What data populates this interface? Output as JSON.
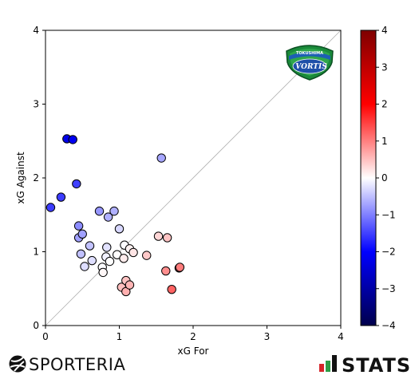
{
  "chart_data": {
    "type": "scatter",
    "title": "",
    "xlabel": "xG For",
    "ylabel": "xG Against",
    "xlim": [
      0,
      4
    ],
    "ylim": [
      0,
      4
    ],
    "xticks": [
      "0",
      "1",
      "2",
      "3",
      "4"
    ],
    "yticks": [
      "0",
      "1",
      "2",
      "3",
      "4"
    ],
    "diagonal_reference_line": true,
    "grid": false,
    "colorbar": {
      "colormap": "seismic",
      "range": [
        -4,
        4
      ],
      "ticks": [
        "−4",
        "−3",
        "−2",
        "−1",
        "0",
        "1",
        "2",
        "3",
        "4"
      ],
      "color_value": "xG For − xG Against"
    },
    "points": [
      {
        "x": 0.07,
        "y": 1.6
      },
      {
        "x": 0.21,
        "y": 1.74
      },
      {
        "x": 0.29,
        "y": 2.53
      },
      {
        "x": 0.37,
        "y": 2.52
      },
      {
        "x": 0.42,
        "y": 1.92
      },
      {
        "x": 0.45,
        "y": 1.35
      },
      {
        "x": 0.45,
        "y": 1.19
      },
      {
        "x": 0.5,
        "y": 1.24
      },
      {
        "x": 0.48,
        "y": 0.97
      },
      {
        "x": 0.53,
        "y": 0.8
      },
      {
        "x": 0.6,
        "y": 1.08
      },
      {
        "x": 0.63,
        "y": 0.88
      },
      {
        "x": 0.73,
        "y": 1.55
      },
      {
        "x": 0.77,
        "y": 0.79
      },
      {
        "x": 0.78,
        "y": 0.72
      },
      {
        "x": 0.82,
        "y": 0.93
      },
      {
        "x": 0.83,
        "y": 1.06
      },
      {
        "x": 0.85,
        "y": 1.47
      },
      {
        "x": 0.87,
        "y": 0.87
      },
      {
        "x": 0.93,
        "y": 1.55
      },
      {
        "x": 0.97,
        "y": 0.96
      },
      {
        "x": 1.0,
        "y": 1.31
      },
      {
        "x": 1.03,
        "y": 0.52
      },
      {
        "x": 1.06,
        "y": 0.91
      },
      {
        "x": 1.07,
        "y": 1.09
      },
      {
        "x": 1.09,
        "y": 0.61
      },
      {
        "x": 1.09,
        "y": 0.46
      },
      {
        "x": 1.14,
        "y": 0.55
      },
      {
        "x": 1.14,
        "y": 1.04
      },
      {
        "x": 1.19,
        "y": 0.99
      },
      {
        "x": 1.37,
        "y": 0.95
      },
      {
        "x": 1.53,
        "y": 1.21
      },
      {
        "x": 1.57,
        "y": 2.27
      },
      {
        "x": 1.63,
        "y": 0.74
      },
      {
        "x": 1.65,
        "y": 1.19
      },
      {
        "x": 1.71,
        "y": 0.49
      },
      {
        "x": 1.81,
        "y": 0.78
      },
      {
        "x": 1.82,
        "y": 0.79
      }
    ]
  },
  "branding": {
    "left_logo_text": "SPORTERIA",
    "left_logo_icon": "soccer-ball-icon",
    "right_logo_text": "STATS",
    "right_logo_icon": "stats-bars-icon",
    "team_emblem": {
      "name": "tokushima-vortis-emblem",
      "small_text": "TOKUSHIMA",
      "big_text": "VORTIS"
    }
  },
  "colors": {
    "negative": "#0000ff",
    "neutral": "#ffffff",
    "positive": "#ff0000"
  }
}
